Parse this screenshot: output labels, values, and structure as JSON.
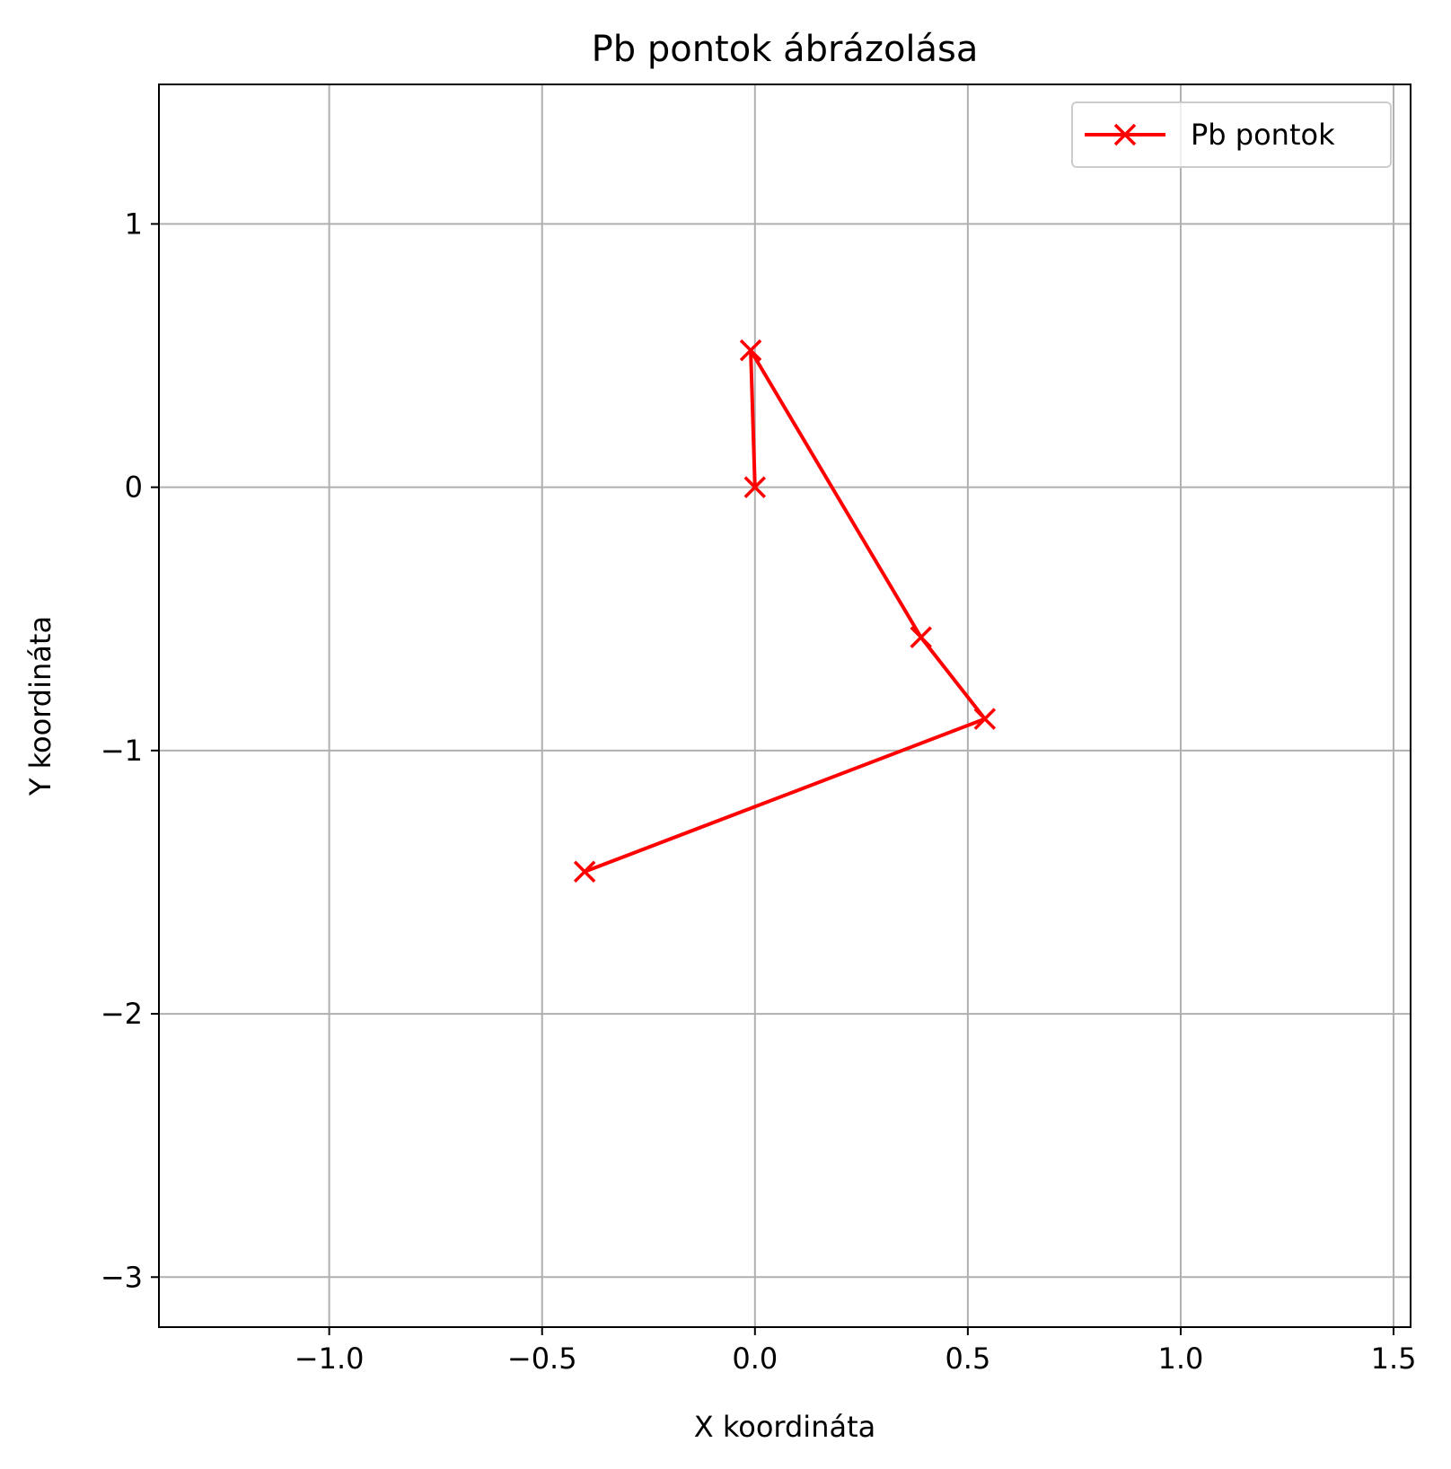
{
  "chart_data": {
    "type": "line",
    "title": "Pb pontok ábrázolása",
    "xlabel": "X koordináta",
    "ylabel": "Y koordináta",
    "xlim": [
      -1.4,
      1.54
    ],
    "ylim": [
      -3.19,
      1.53
    ],
    "xticks": [
      -1.0,
      -0.5,
      0.0,
      0.5,
      1.0,
      1.5
    ],
    "xtick_labels": [
      "−1.0",
      "−0.5",
      "0.0",
      "0.5",
      "1.0",
      "1.5"
    ],
    "yticks": [
      1,
      0,
      -1,
      -2,
      -3
    ],
    "ytick_labels": [
      "1",
      "0",
      "−1",
      "−2",
      "−3"
    ],
    "grid": true,
    "legend_position": "top-right",
    "series": [
      {
        "name": "Pb pontok",
        "color": "#ff0000",
        "marker": "x",
        "x": [
          0.0,
          -0.01,
          0.39,
          0.54,
          -0.4
        ],
        "y": [
          0.0,
          0.52,
          -0.57,
          -0.88,
          -1.46
        ]
      }
    ]
  }
}
